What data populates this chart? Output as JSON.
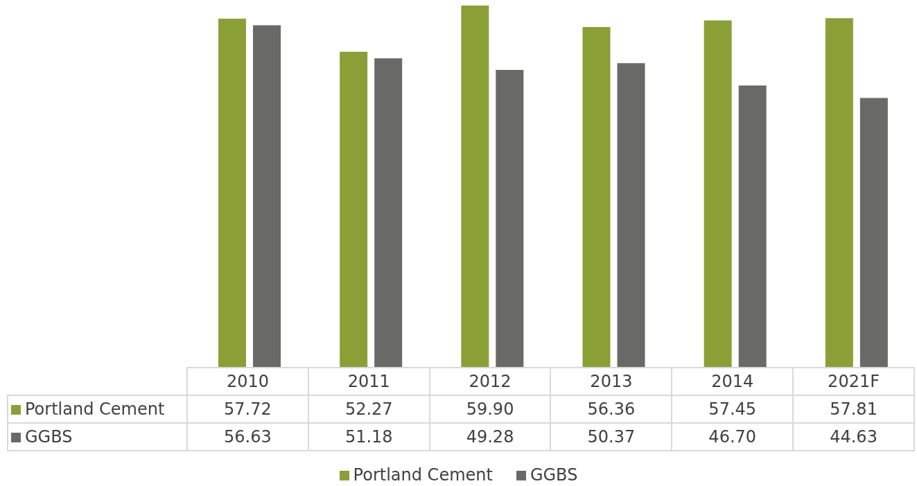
{
  "chart_data": {
    "type": "bar",
    "categories": [
      "2010",
      "2011",
      "2012",
      "2013",
      "2014",
      "2021F"
    ],
    "series": [
      {
        "name": "Portland Cement",
        "color": "#8aa037",
        "values": [
          57.72,
          52.27,
          59.9,
          56.36,
          57.45,
          57.81
        ],
        "value_labels": [
          "57.72",
          "52.27",
          "59.90",
          "56.36",
          "57.45",
          "57.81"
        ]
      },
      {
        "name": "GGBS",
        "color": "#696a67",
        "values": [
          56.63,
          51.18,
          49.28,
          50.37,
          46.7,
          44.63
        ],
        "value_labels": [
          "56.63",
          "51.18",
          "49.28",
          "50.37",
          "46.70",
          "44.63"
        ]
      }
    ],
    "legend": "bottom"
  }
}
